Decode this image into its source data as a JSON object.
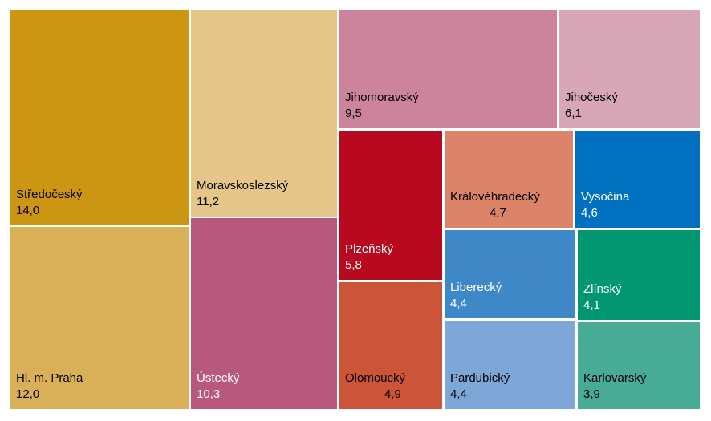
{
  "chart_data": {
    "type": "treemap",
    "items": [
      {
        "name": "Středočeský",
        "value": "14,0",
        "color": "#CC9612",
        "text_color": "#000000"
      },
      {
        "name": "Hl. m. Praha",
        "value": "12,0",
        "color": "#D9AF58",
        "text_color": "#000000"
      },
      {
        "name": "Moravskoslezský",
        "value": "11,2",
        "color": "#E6C688",
        "text_color": "#000000"
      },
      {
        "name": "Ústecký",
        "value": "10,3",
        "color": "#B8587C",
        "text_color": "#FFFFFF"
      },
      {
        "name": "Jihomoravský",
        "value": "9,5",
        "color": "#CC849C",
        "text_color": "#000000"
      },
      {
        "name": "Jihočeský",
        "value": "6,1",
        "color": "#D7A7B7",
        "text_color": "#000000"
      },
      {
        "name": "Plzeňský",
        "value": "5,8",
        "color": "#B9091E",
        "text_color": "#FFFFFF"
      },
      {
        "name": "Olomoucký",
        "value": "4,9",
        "color": "#CC5438",
        "text_color": "#000000"
      },
      {
        "name": "Královéhradecký",
        "value": "4,7",
        "color": "#DB846A",
        "text_color": "#000000"
      },
      {
        "name": "Vysočina",
        "value": "4,6",
        "color": "#0070C0",
        "text_color": "#FFFFFF"
      },
      {
        "name": "Liberecký",
        "value": "4,4",
        "color": "#3F88C8",
        "text_color": "#FFFFFF"
      },
      {
        "name": "Zlínský",
        "value": "4,1",
        "color": "#009670",
        "text_color": "#FFFFFF"
      },
      {
        "name": "Pardubický",
        "value": "4,4",
        "color": "#7EA6D7",
        "text_color": "#000000"
      },
      {
        "name": "Karlovarský",
        "value": "3,9",
        "color": "#48AB96",
        "text_color": "#000000"
      }
    ]
  }
}
